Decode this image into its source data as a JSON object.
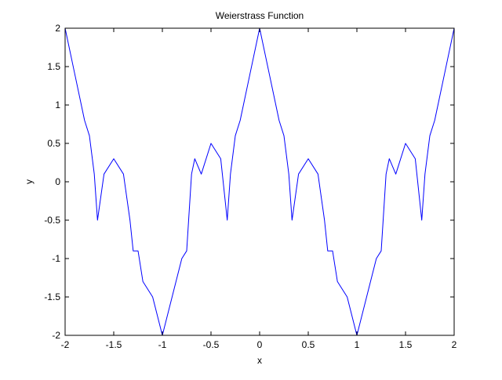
{
  "chart_data": {
    "type": "line",
    "title": "Weierstrass Function",
    "xlabel": "x",
    "ylabel": "y",
    "xlim": [
      -2,
      2
    ],
    "ylim": [
      -2,
      2
    ],
    "x_ticks": [
      -2,
      -1.5,
      -1,
      -0.5,
      0,
      0.5,
      1,
      1.5,
      2
    ],
    "x_tick_labels": [
      "-2",
      "-1.5",
      "-1",
      "-0.5",
      "0",
      "0.5",
      "1",
      "1.5",
      "2"
    ],
    "y_ticks": [
      -2,
      -1.5,
      -1,
      -0.5,
      0,
      0.5,
      1,
      1.5,
      2
    ],
    "y_tick_labels": [
      "-2",
      "-1.5",
      "-1",
      "-0.5",
      "0",
      "0.5",
      "1",
      "1.5",
      "2"
    ],
    "grid": false,
    "series": [
      {
        "color": "#0000ff",
        "x": [
          -2,
          -1.9,
          -1.8,
          -1.75,
          -1.7,
          -1.667,
          -1.6,
          -1.5,
          -1.4,
          -1.333,
          -1.3,
          -1.25,
          -1.2,
          -1.1,
          -1.0,
          -0.9,
          -0.8,
          -0.75,
          -0.7,
          -0.667,
          -0.6,
          -0.5,
          -0.4,
          -0.333,
          -0.3,
          -0.25,
          -0.2,
          -0.1,
          0,
          0.1,
          0.2,
          0.25,
          0.3,
          0.333,
          0.4,
          0.5,
          0.6,
          0.667,
          0.7,
          0.75,
          0.8,
          0.9,
          1.0,
          1.1,
          1.2,
          1.25,
          1.3,
          1.333,
          1.4,
          1.5,
          1.6,
          1.667,
          1.7,
          1.75,
          1.8,
          1.9,
          2
        ],
        "y": [
          2,
          1.4,
          0.8,
          0.6,
          0.1,
          -0.5,
          0.1,
          0.3,
          0.1,
          -0.5,
          -0.9,
          -0.9,
          -1.3,
          -1.5,
          -2,
          -1.5,
          -1.0,
          -0.9,
          0.1,
          0.3,
          0.1,
          0.5,
          0.3,
          -0.5,
          0.1,
          0.6,
          0.8,
          1.4,
          2,
          1.4,
          0.8,
          0.6,
          0.1,
          -0.5,
          0.1,
          0.3,
          0.1,
          -0.5,
          -0.9,
          -0.9,
          -1.3,
          -1.5,
          -2,
          -1.5,
          -1.0,
          -0.9,
          0.1,
          0.3,
          0.1,
          0.5,
          0.3,
          -0.5,
          0.1,
          0.6,
          0.8,
          1.4,
          2
        ]
      }
    ]
  }
}
